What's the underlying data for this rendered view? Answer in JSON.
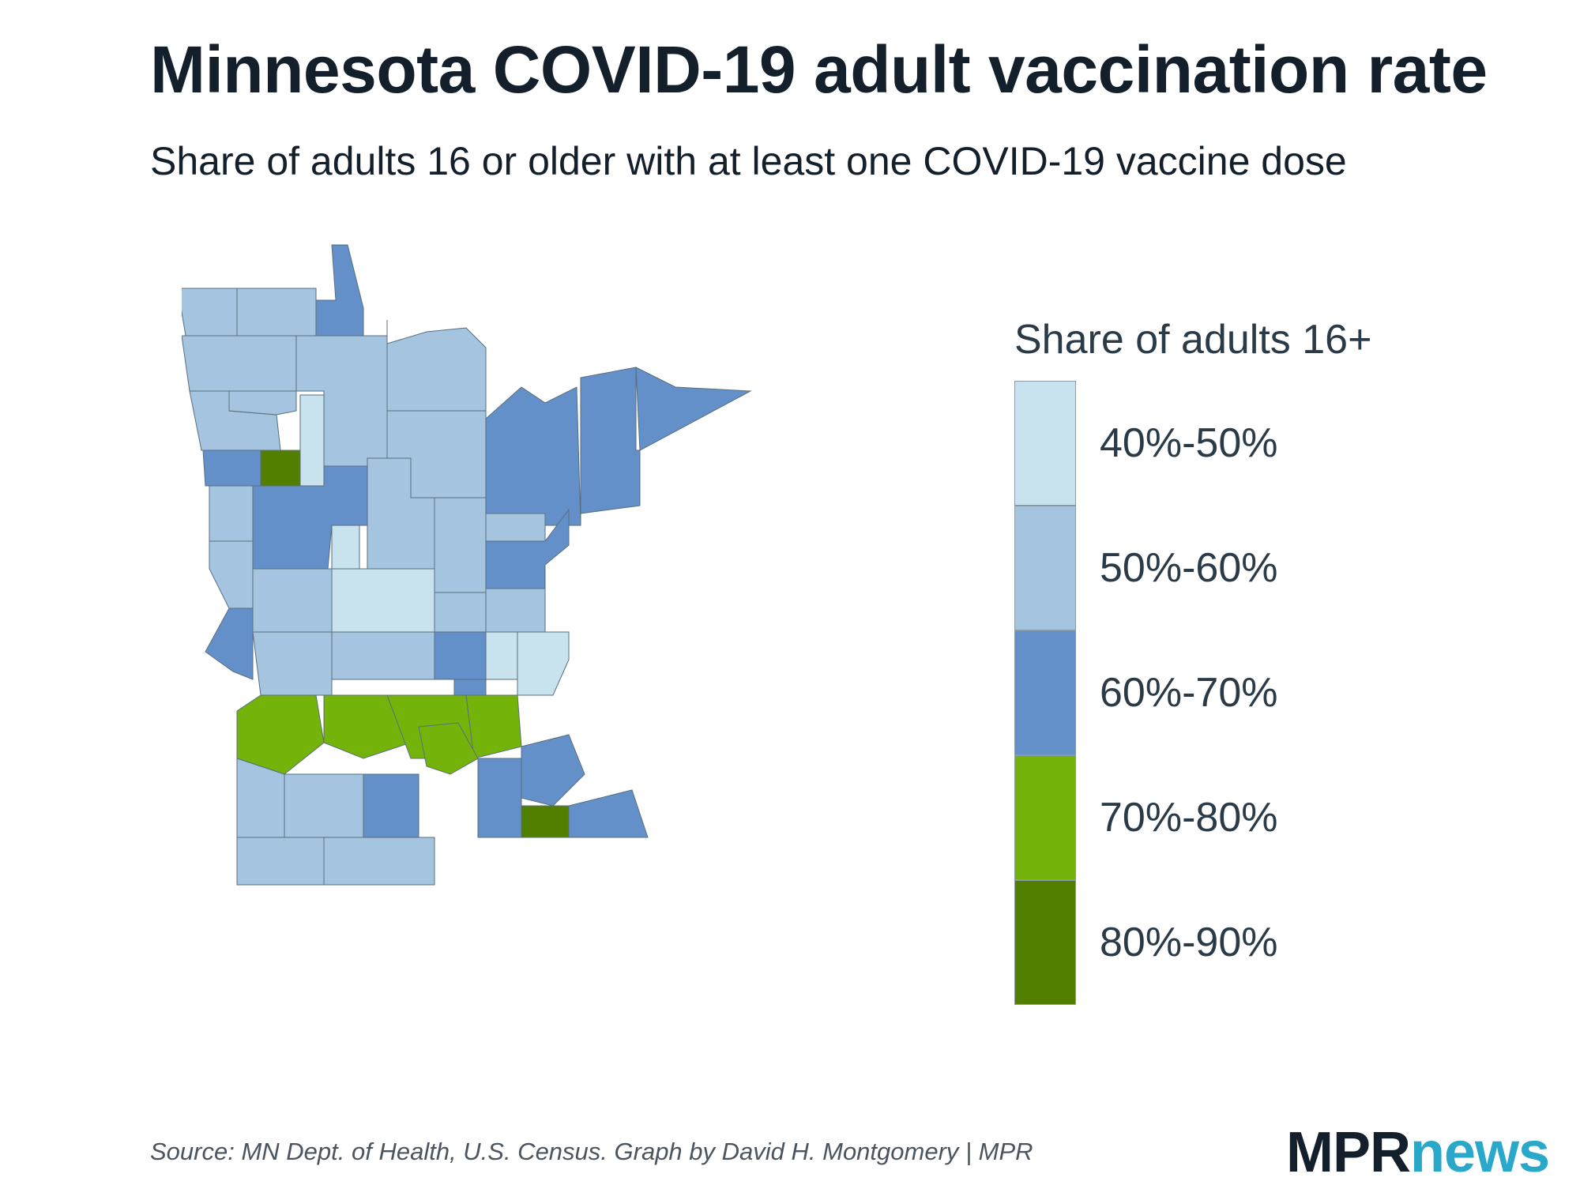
{
  "title": "Minnesota COVID-19 adult vaccination rate",
  "subtitle": "Share of adults 16 or older with at least one COVID-19 vaccine dose",
  "legend": {
    "title": "Share of adults 16+",
    "bins": [
      {
        "label": "40%-50%",
        "color": "#c8e3ee"
      },
      {
        "label": "50%-60%",
        "color": "#a4c4e0"
      },
      {
        "label": "60%-70%",
        "color": "#6390c8"
      },
      {
        "label": "70%-80%",
        "color": "#74b30a"
      },
      {
        "label": "80%-90%",
        "color": "#537f00"
      }
    ]
  },
  "source": "Source: MN Dept. of Health, U.S. Census. Graph by David H. Montgomery | MPR",
  "logo": {
    "mpr": "MPR",
    "news": "news",
    "name": "MPR News"
  },
  "map": {
    "state": "Minnesota",
    "region_bins": [
      "50%-60%",
      "50%-60%",
      "60%-70%",
      "60%-70%",
      "60%-70%",
      "60%-70%",
      "50%-60%",
      "50%-60%",
      "50%-60%",
      "50%-60%",
      "50%-60%",
      "50%-60%",
      "50%-60%",
      "40%-50%",
      "60%-70%",
      "80%-90%",
      "50%-60%",
      "60%-70%",
      "60%-70%",
      "40%-50%",
      "50%-60%",
      "50%-60%",
      "50%-60%",
      "50%-60%",
      "40%-50%",
      "50%-60%",
      "50%-60%",
      "60%-70%",
      "50%-60%",
      "50%-60%",
      "60%-70%",
      "40%-50%",
      "40%-50%",
      "60%-70%",
      "70%-80%",
      "70%-80%",
      "70%-80%",
      "70%-80%",
      "70%-80%",
      "60%-70%",
      "60%-70%",
      "80%-90%",
      "60%-70%",
      "50%-60%",
      "50%-60%",
      "60%-70%",
      "50%-60%",
      "50%-60%"
    ]
  }
}
